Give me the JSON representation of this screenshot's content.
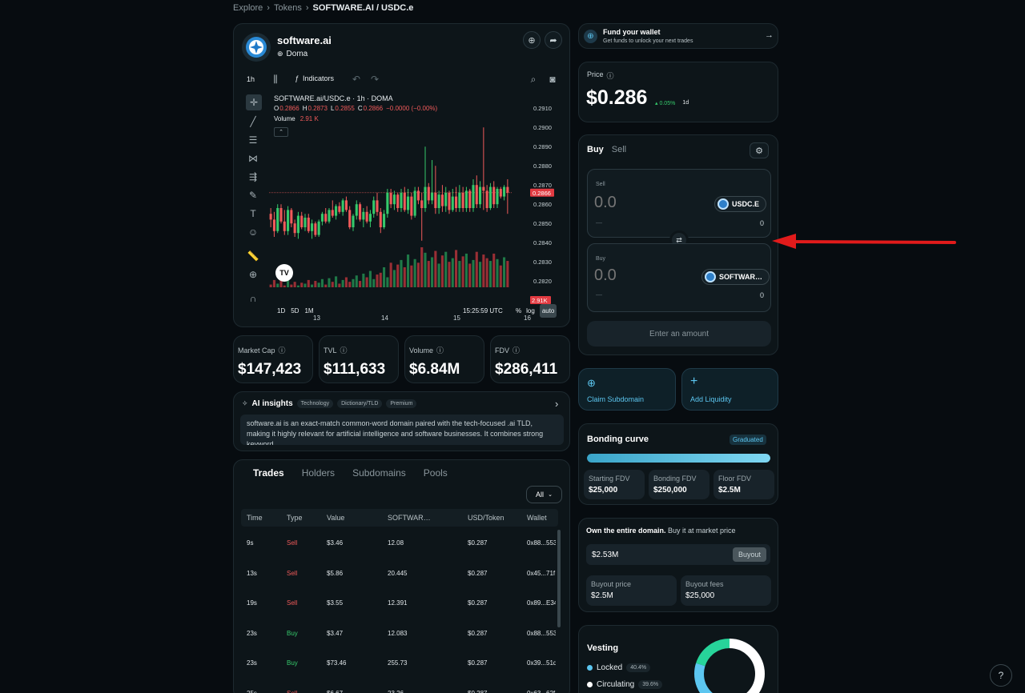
{
  "breadcrumb": {
    "explore": "Explore",
    "tokens": "Tokens",
    "current": "SOFTWARE.AI / USDC.e",
    "sep": "›"
  },
  "token": {
    "name": "software.ai",
    "network": "Doma"
  },
  "chart_toolbar": {
    "interval": "1h",
    "indicators": "Indicators"
  },
  "chart_data": {
    "type": "candlestick",
    "title": "SOFTWARE.ai/USDC.e · 1h · DOMA",
    "ohlc": {
      "o_label": "O",
      "o": "0.2866",
      "h_label": "H",
      "h": "0.2873",
      "l_label": "L",
      "l": "0.2855",
      "c_label": "C",
      "c": "0.2866",
      "change": "−0.0000 (−0.00%)"
    },
    "volume_label": "Volume",
    "volume_value": "2.91 K",
    "yticks": [
      "0.2910",
      "0.2900",
      "0.2890",
      "0.2880",
      "0.2870",
      "0.2860",
      "0.2850",
      "0.2840",
      "0.2830",
      "0.2820"
    ],
    "ylim": [
      0.2818,
      0.2913
    ],
    "xticks": [
      "13",
      "14",
      "15",
      "16"
    ],
    "last_price": "0.2866",
    "last_volume": "2.91K",
    "candles": [
      [
        0.2855,
        0.2858,
        0.2848,
        0.2852
      ],
      [
        0.2852,
        0.2856,
        0.2843,
        0.2846
      ],
      [
        0.2846,
        0.286,
        0.2845,
        0.2858
      ],
      [
        0.2858,
        0.286,
        0.285,
        0.2851
      ],
      [
        0.2851,
        0.2857,
        0.2844,
        0.2846
      ],
      [
        0.2846,
        0.2859,
        0.2844,
        0.2857
      ],
      [
        0.2857,
        0.2858,
        0.2848,
        0.285
      ],
      [
        0.285,
        0.2852,
        0.2843,
        0.2845
      ],
      [
        0.2845,
        0.2856,
        0.2842,
        0.2854
      ],
      [
        0.2854,
        0.2856,
        0.2847,
        0.2848
      ],
      [
        0.2848,
        0.2855,
        0.2846,
        0.2853
      ],
      [
        0.2853,
        0.2855,
        0.2845,
        0.2846
      ],
      [
        0.2846,
        0.2852,
        0.2842,
        0.285
      ],
      [
        0.285,
        0.2851,
        0.2843,
        0.2844
      ],
      [
        0.2844,
        0.2852,
        0.2843,
        0.2851
      ],
      [
        0.2851,
        0.2856,
        0.2849,
        0.2855
      ],
      [
        0.2855,
        0.2858,
        0.285,
        0.2851
      ],
      [
        0.2851,
        0.2858,
        0.285,
        0.2857
      ],
      [
        0.2857,
        0.2862,
        0.2853,
        0.2854
      ],
      [
        0.2854,
        0.286,
        0.2852,
        0.2859
      ],
      [
        0.2859,
        0.2861,
        0.2855,
        0.2856
      ],
      [
        0.2856,
        0.2863,
        0.2854,
        0.2862
      ],
      [
        0.2862,
        0.2864,
        0.2856,
        0.2857
      ],
      [
        0.2857,
        0.2859,
        0.2847,
        0.2848
      ],
      [
        0.2848,
        0.2855,
        0.2846,
        0.2854
      ],
      [
        0.2854,
        0.2862,
        0.2852,
        0.286
      ],
      [
        0.286,
        0.2861,
        0.2851,
        0.2852
      ],
      [
        0.2852,
        0.2858,
        0.2848,
        0.2856
      ],
      [
        0.2856,
        0.2859,
        0.285,
        0.2851
      ],
      [
        0.2851,
        0.2857,
        0.2848,
        0.2855
      ],
      [
        0.2855,
        0.2864,
        0.2853,
        0.2862
      ],
      [
        0.2862,
        0.2866,
        0.2854,
        0.2856
      ],
      [
        0.2856,
        0.2858,
        0.2845,
        0.2848
      ],
      [
        0.2848,
        0.2857,
        0.2847,
        0.2855
      ],
      [
        0.2855,
        0.2868,
        0.2853,
        0.2866
      ],
      [
        0.2866,
        0.2868,
        0.2858,
        0.286
      ],
      [
        0.286,
        0.2867,
        0.2857,
        0.2865
      ],
      [
        0.2865,
        0.2866,
        0.2856,
        0.2858
      ],
      [
        0.2858,
        0.2868,
        0.2856,
        0.2866
      ],
      [
        0.2866,
        0.2869,
        0.2856,
        0.2857
      ],
      [
        0.2857,
        0.2868,
        0.2855,
        0.2864
      ],
      [
        0.2864,
        0.2866,
        0.2852,
        0.2854
      ],
      [
        0.2854,
        0.2869,
        0.2853,
        0.2867
      ],
      [
        0.2867,
        0.2869,
        0.286,
        0.2862
      ],
      [
        0.2862,
        0.2866,
        0.2841,
        0.2858
      ],
      [
        0.2858,
        0.289,
        0.2856,
        0.2869
      ],
      [
        0.2869,
        0.2871,
        0.286,
        0.2862
      ],
      [
        0.2862,
        0.2883,
        0.286,
        0.2866
      ],
      [
        0.2866,
        0.288,
        0.2855,
        0.2858
      ],
      [
        0.2858,
        0.2867,
        0.2855,
        0.2865
      ],
      [
        0.2865,
        0.287,
        0.2856,
        0.2859
      ],
      [
        0.2859,
        0.2869,
        0.2856,
        0.2866
      ],
      [
        0.2866,
        0.2867,
        0.2855,
        0.2857
      ],
      [
        0.2857,
        0.2868,
        0.2856,
        0.2864
      ],
      [
        0.2864,
        0.2869,
        0.2856,
        0.2858
      ],
      [
        0.2858,
        0.287,
        0.2856,
        0.2866
      ],
      [
        0.2866,
        0.2869,
        0.2856,
        0.2858
      ],
      [
        0.2858,
        0.2869,
        0.2856,
        0.2867
      ],
      [
        0.2867,
        0.2868,
        0.2856,
        0.2858
      ],
      [
        0.2858,
        0.2873,
        0.2856,
        0.287
      ],
      [
        0.287,
        0.2875,
        0.2858,
        0.286
      ],
      [
        0.286,
        0.2872,
        0.2858,
        0.2869
      ],
      [
        0.2869,
        0.29,
        0.2857,
        0.2867
      ],
      [
        0.2867,
        0.287,
        0.2856,
        0.2858
      ],
      [
        0.2858,
        0.2871,
        0.2857,
        0.2869
      ],
      [
        0.2869,
        0.2872,
        0.2858,
        0.286
      ],
      [
        0.286,
        0.2869,
        0.2858,
        0.2868
      ],
      [
        0.2868,
        0.2869,
        0.2863,
        0.2864
      ],
      [
        0.2864,
        0.287,
        0.2862,
        0.2869
      ],
      [
        0.2869,
        0.2873,
        0.2855,
        0.2866
      ]
    ],
    "volumes": [
      0.3,
      0.8,
      0.4,
      1.1,
      0.2,
      0.9,
      0.3,
      0.6,
      0.2,
      0.5,
      0.4,
      0.8,
      0.3,
      0.7,
      0.5,
      0.9,
      0.3,
      1.0,
      0.6,
      1.2,
      0.4,
      0.8,
      1.1,
      0.6,
      0.9,
      1.3,
      0.7,
      1.5,
      1.1,
      1.8,
      0.9,
      1.4,
      1.6,
      2.2,
      1.1,
      2.7,
      1.9,
      2.5,
      3.0,
      2.2,
      3.6,
      2.4,
      3.1,
      2.7,
      4.4,
      3.8,
      2.9,
      3.3,
      4.0,
      2.6,
      3.5,
      3.9,
      2.8,
      3.2,
      4.1,
      2.9,
      3.4,
      3.7,
      2.6,
      3.0,
      3.9,
      2.8,
      3.6,
      3.2,
      2.9,
      3.7,
      3.1,
      2.4,
      3.3,
      2.9
    ],
    "timestamp": "15:25:59 UTC",
    "ranges": [
      "1D",
      "5D",
      "1M"
    ],
    "scale_opts": [
      "%",
      "log",
      "auto"
    ]
  },
  "stats": [
    {
      "title": "Market Cap",
      "value": "$147,423"
    },
    {
      "title": "TVL",
      "value": "$111,633"
    },
    {
      "title": "Volume",
      "value": "$6.84M"
    },
    {
      "title": "FDV",
      "value": "$286,411"
    }
  ],
  "ai": {
    "title": "AI insights",
    "tags": [
      "Technology",
      "Dictionary/TLD",
      "Premium"
    ],
    "text": "software.ai is an exact-match common-word domain paired with the tech-focused .ai TLD, making it highly relevant for artificial intelligence and software businesses. It combines strong keyword…"
  },
  "trades": {
    "tabs": [
      "Trades",
      "Holders",
      "Subdomains",
      "Pools"
    ],
    "filter": "All",
    "columns": [
      "Time",
      "Type",
      "Value",
      "SOFTWAR…",
      "USD/Token",
      "Wallet"
    ],
    "rows": [
      {
        "time": "9s",
        "type": "Sell",
        "value": "$3.46",
        "amount": "12.08",
        "price": "$0.287",
        "wallet": "0x88...553"
      },
      {
        "time": "13s",
        "type": "Sell",
        "value": "$5.86",
        "amount": "20.445",
        "price": "$0.287",
        "wallet": "0x45...71f"
      },
      {
        "time": "19s",
        "type": "Sell",
        "value": "$3.55",
        "amount": "12.391",
        "price": "$0.287",
        "wallet": "0x89...E34"
      },
      {
        "time": "23s",
        "type": "Buy",
        "value": "$3.47",
        "amount": "12.083",
        "price": "$0.287",
        "wallet": "0x88...553"
      },
      {
        "time": "23s",
        "type": "Buy",
        "value": "$73.46",
        "amount": "255.73",
        "price": "$0.287",
        "wallet": "0x39...51d"
      },
      {
        "time": "25s",
        "type": "Sell",
        "value": "$6.67",
        "amount": "23.26",
        "price": "$0.287",
        "wallet": "0x63...62f"
      }
    ]
  },
  "fund": {
    "title": "Fund your wallet",
    "subtitle": "Get funds to unlock your next trades"
  },
  "price": {
    "label": "Price",
    "value": "$0.286",
    "change": "0.05%",
    "period": "1d"
  },
  "swap": {
    "tab_buy": "Buy",
    "tab_sell": "Sell",
    "sell_label": "Sell",
    "sell_placeholder": "0.0",
    "sell_token": "USDC.E",
    "sell_usd": "—",
    "sell_balance": "0",
    "buy_label": "Buy",
    "buy_placeholder": "0.0",
    "buy_token": "SOFTWAR…",
    "buy_usd": "—",
    "buy_balance": "0",
    "submit": "Enter an amount"
  },
  "actions": {
    "claim": "Claim Subdomain",
    "liquidity": "Add Liquidity"
  },
  "bonding": {
    "title": "Bonding curve",
    "badge": "Graduated",
    "progress": 1.0,
    "items": [
      {
        "label": "Starting FDV",
        "value": "$25,000"
      },
      {
        "label": "Bonding FDV",
        "value": "$250,000"
      },
      {
        "label": "Floor FDV",
        "value": "$2.5M"
      }
    ]
  },
  "buyout": {
    "title_bold": "Own the entire domain.",
    "title_rest": "Buy it at market price",
    "amount": "$2.53M",
    "button": "Buyout",
    "price_label": "Buyout price",
    "price_value": "$2.5M",
    "fees_label": "Buyout fees",
    "fees_value": "$25,000"
  },
  "vesting": {
    "title": "Vesting",
    "locked_label": "Locked",
    "locked_pct": "40.4%",
    "circ_label": "Circulating",
    "circ_pct": "39.6%",
    "locked_value": 40.4,
    "circ_value": 39.6
  },
  "colors": {
    "up": "#35c96b",
    "down": "#f05a5a",
    "accent": "#5cc6f0",
    "teal": "#27d49a"
  }
}
